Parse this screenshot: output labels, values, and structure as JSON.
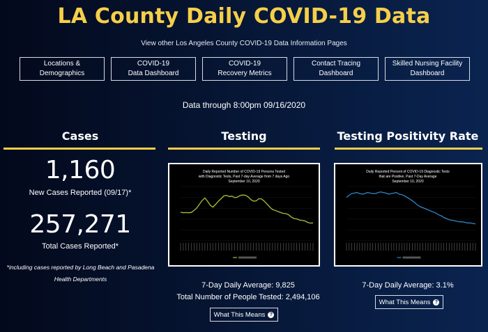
{
  "header": {
    "title": "LA County Daily COVID-19 Data",
    "subtitle": "View other Los Angeles County COVID-19 Data Information Pages"
  },
  "nav": {
    "buttons": [
      {
        "line1": "Locations &",
        "line2": "Demographics"
      },
      {
        "line1": "COVID-19",
        "line2": "Data Dashboard"
      },
      {
        "line1": "COVID-19",
        "line2": "Recovery Metrics"
      },
      {
        "line1": "Contact Tracing",
        "line2": "Dashboard"
      },
      {
        "line1": "Skilled Nursing Facility",
        "line2": "Dashboard"
      }
    ]
  },
  "data_through": "Data through 8:00pm 09/16/2020",
  "cases": {
    "heading": "Cases",
    "new_cases": "1,160",
    "new_cases_label": "New Cases Reported (09/17)*",
    "total_cases": "257,271",
    "total_cases_label": "Total Cases Reported*",
    "footnote_line1": "*including cases reported by Long Beach and Pasadena",
    "footnote_line2": "Health Departments"
  },
  "testing": {
    "heading": "Testing",
    "stat1": "7-Day Daily Average: 9,825",
    "stat2": "Total Number of People Tested: 2,494,106",
    "button_label": "What This Means",
    "chart_title_lines": [
      "Daily Reported Number of COVID-19 Persons Tested",
      "with Diagnostic Tests, Past 7-day Average from 7 days Ago",
      "September 10, 2020"
    ],
    "line_color": "#a8c23a"
  },
  "positivity": {
    "heading": "Testing Positivity Rate",
    "stat1": "7-Day Daily Average: 3.1%",
    "button_label": "What This Means",
    "chart_title_lines": [
      "Daily Reported Percent of COVID-19 Diagnostic Tests",
      "that are Positive, Past 7-Day Average",
      "September 10, 2020"
    ],
    "line_color": "#2f86c9"
  },
  "colors": {
    "accent": "#f5cf4a",
    "background": "#061533"
  },
  "chart_data": [
    {
      "type": "line",
      "title": "Daily Reported Number of COVID-19 Persons Tested with Diagnostic Tests, Past 7-day Average from 7 days Ago September 10, 2020",
      "series": [
        {
          "values": [
            15800,
            15500,
            15600,
            15500,
            15700,
            16800,
            18200,
            20200,
            22300,
            23700,
            21800,
            19600,
            18600,
            20200,
            21900,
            23300,
            24800,
            25100,
            24500,
            24700,
            23900,
            24100,
            25000,
            25300,
            25200,
            24300,
            22800,
            21900,
            22100,
            23300,
            23100,
            21900,
            20300,
            18600,
            17300,
            16800,
            16200,
            15600,
            15200,
            15000,
            14400,
            13100,
            12300,
            12100,
            11500,
            11300,
            11000,
            10200,
            9800,
            9900
          ]
        }
      ],
      "ylim": [
        0,
        30000
      ]
    },
    {
      "type": "line",
      "title": "Daily Reported Percent of COVID-19 Diagnostic Tests that are Positive, Past 7-Day Average September 10, 2020",
      "series": [
        {
          "values": [
            8.0,
            8.4,
            8.7,
            8.8,
            8.9,
            8.7,
            8.6,
            8.7,
            8.9,
            8.8,
            8.7,
            8.7,
            8.9,
            9.0,
            8.9,
            8.8,
            8.6,
            8.7,
            8.8,
            8.9,
            8.6,
            8.5,
            8.3,
            8.0,
            7.7,
            7.4,
            7.0,
            6.6,
            6.3,
            6.1,
            5.9,
            5.7,
            5.5,
            5.3,
            5.1,
            4.8,
            4.6,
            4.3,
            4.1,
            3.9,
            3.8,
            3.7,
            3.6,
            3.5,
            3.5,
            3.4,
            3.3,
            3.3,
            3.2,
            3.1
          ]
        }
      ],
      "ylim": [
        0,
        10
      ]
    }
  ]
}
